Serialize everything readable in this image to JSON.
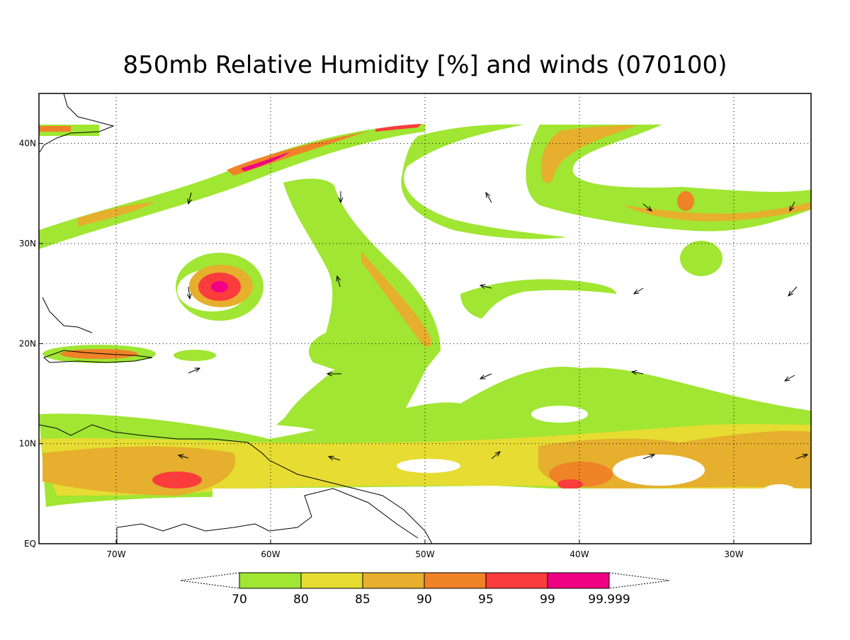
{
  "title": "850mb Relative Humidity [%] and winds (070100)",
  "map": {
    "lon_range": [
      -75,
      -25
    ],
    "lat_range": [
      0,
      45
    ],
    "lon_ticks": [
      {
        "value": -70,
        "label": "70W"
      },
      {
        "value": -60,
        "label": "60W"
      },
      {
        "value": -50,
        "label": "50W"
      },
      {
        "value": -40,
        "label": "40W"
      },
      {
        "value": -30,
        "label": "30W"
      }
    ],
    "lat_ticks": [
      {
        "value": 0,
        "label": "EQ"
      },
      {
        "value": 10,
        "label": "10N"
      },
      {
        "value": 20,
        "label": "20N"
      },
      {
        "value": 30,
        "label": "30N"
      },
      {
        "value": 40,
        "label": "40N"
      }
    ],
    "grid": true
  },
  "colorbar": {
    "levels": [
      70,
      80,
      85,
      90,
      95,
      99,
      99.999
    ],
    "colors": [
      "#a0e632",
      "#e6dc32",
      "#e6af2d",
      "#f08228",
      "#fa3c3c",
      "#f00082"
    ]
  }
}
